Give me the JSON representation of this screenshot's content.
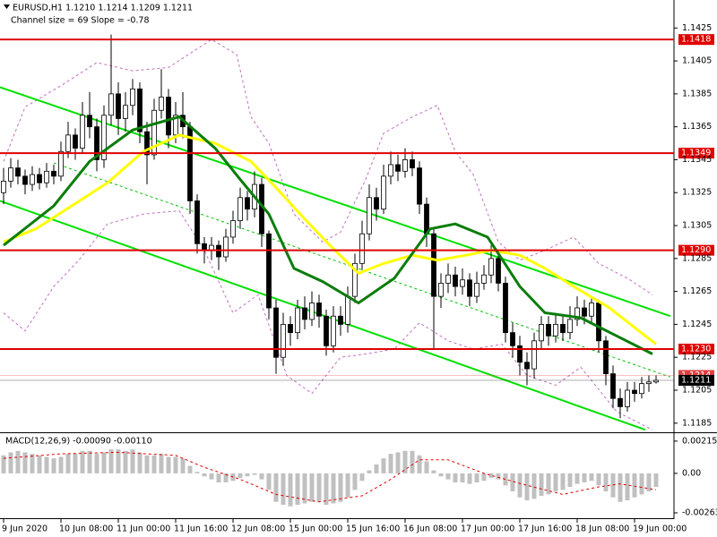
{
  "chart_data": [
    {
      "type": "candlestick",
      "title": "EURUSD,H1  1.1210 1.1214 1.1209 1.1211",
      "subtitle": "Channel size = 69 Slope = -0.78",
      "x": [
        0,
        2,
        4,
        6,
        8,
        10,
        12,
        14,
        16,
        18,
        20,
        22,
        24,
        26,
        28,
        30,
        32,
        34,
        36,
        38,
        40,
        42,
        44,
        46,
        48,
        50,
        52,
        54,
        56,
        58,
        60,
        62,
        64,
        66,
        68,
        70,
        72,
        74,
        76,
        78,
        80,
        82,
        84,
        86,
        88,
        90,
        92,
        94,
        96,
        98,
        100,
        102,
        104,
        106,
        108,
        110,
        112,
        114,
        116,
        118,
        120,
        122,
        124,
        126,
        128,
        130,
        132,
        134,
        136,
        138,
        140,
        142,
        144,
        146,
        148,
        150,
        152,
        154,
        156,
        158,
        160,
        162,
        164,
        166,
        168,
        170,
        172,
        174,
        176,
        178,
        180,
        182
      ],
      "open": [
        1.1325,
        1.1332,
        1.134,
        1.1335,
        1.133,
        1.1336,
        1.1331,
        1.1338,
        1.1335,
        1.135,
        1.136,
        1.1352,
        1.1372,
        1.1365,
        1.1345,
        1.1372,
        1.1385,
        1.137,
        1.1378,
        1.1388,
        1.1362,
        1.1348,
        1.1375,
        1.1383,
        1.136,
        1.1372,
        1.1365,
        1.132,
        1.1294,
        1.129,
        1.1293,
        1.1286,
        1.1298,
        1.1308,
        1.1322,
        1.1315,
        1.133,
        1.13,
        1.1255,
        1.1225,
        1.1245,
        1.124,
        1.1255,
        1.1248,
        1.1258,
        1.125,
        1.1232,
        1.125,
        1.1245,
        1.1262,
        1.1282,
        1.13,
        1.1322,
        1.1315,
        1.1335,
        1.1342,
        1.1338,
        1.1345,
        1.134,
        1.1318,
        1.13,
        1.1262,
        1.127,
        1.1275,
        1.1268,
        1.1272,
        1.1262,
        1.127,
        1.1275,
        1.1285,
        1.127,
        1.124,
        1.1232,
        1.1222,
        1.1218,
        1.1235,
        1.1245,
        1.1238,
        1.1245,
        1.124,
        1.1248,
        1.1255,
        1.125,
        1.1258,
        1.1235,
        1.1215,
        1.12,
        1.1195,
        1.1205,
        1.1203,
        1.1209,
        1.121
      ],
      "high": [
        1.134,
        1.1346,
        1.1345,
        1.1339,
        1.1341,
        1.134,
        1.1343,
        1.1342,
        1.1356,
        1.1368,
        1.1364,
        1.138,
        1.1386,
        1.137,
        1.1378,
        1.1421,
        1.1392,
        1.1386,
        1.1394,
        1.1392,
        1.1368,
        1.1382,
        1.14,
        1.1388,
        1.138,
        1.1386,
        1.1368,
        1.1324,
        1.1298,
        1.1298,
        1.1296,
        1.1303,
        1.1314,
        1.1328,
        1.1326,
        1.1338,
        1.1334,
        1.1302,
        1.126,
        1.1252,
        1.125,
        1.126,
        1.1262,
        1.1265,
        1.1263,
        1.1254,
        1.1256,
        1.1256,
        1.1268,
        1.1288,
        1.1308,
        1.133,
        1.1328,
        1.1342,
        1.135,
        1.1348,
        1.1352,
        1.135,
        1.1344,
        1.1322,
        1.1304,
        1.1276,
        1.1282,
        1.128,
        1.1279,
        1.1276,
        1.1277,
        1.1281,
        1.1293,
        1.129,
        1.1274,
        1.1246,
        1.1238,
        1.1228,
        1.124,
        1.125,
        1.125,
        1.1252,
        1.125,
        1.1256,
        1.1262,
        1.126,
        1.1262,
        1.126,
        1.1238,
        1.122,
        1.1206,
        1.121,
        1.121,
        1.1213,
        1.1214,
        1.1214
      ],
      "low": [
        1.1318,
        1.1328,
        1.133,
        1.1324,
        1.1326,
        1.1327,
        1.1328,
        1.133,
        1.1332,
        1.1346,
        1.1345,
        1.1349,
        1.1358,
        1.1338,
        1.134,
        1.1366,
        1.136,
        1.1362,
        1.1372,
        1.1355,
        1.133,
        1.1345,
        1.137,
        1.1352,
        1.1355,
        1.1358,
        1.1312,
        1.1288,
        1.1282,
        1.1284,
        1.1278,
        1.1283,
        1.1294,
        1.1303,
        1.1308,
        1.131,
        1.1292,
        1.1248,
        1.1215,
        1.122,
        1.1232,
        1.1236,
        1.1242,
        1.1244,
        1.1243,
        1.1226,
        1.1228,
        1.1238,
        1.124,
        1.1258,
        1.1278,
        1.1296,
        1.1308,
        1.1312,
        1.133,
        1.1332,
        1.1334,
        1.1335,
        1.1312,
        1.1292,
        1.123,
        1.1255,
        1.1264,
        1.1262,
        1.1263,
        1.1256,
        1.1258,
        1.1266,
        1.127,
        1.1265,
        1.1234,
        1.1225,
        1.1214,
        1.1208,
        1.1212,
        1.123,
        1.1232,
        1.1234,
        1.1235,
        1.1236,
        1.1244,
        1.1245,
        1.1246,
        1.1228,
        1.1208,
        1.1194,
        1.1188,
        1.1192,
        1.1198,
        1.12,
        1.1204,
        1.1209
      ],
      "close": [
        1.1332,
        1.134,
        1.1335,
        1.133,
        1.1336,
        1.1331,
        1.1338,
        1.1335,
        1.135,
        1.136,
        1.1352,
        1.1372,
        1.1365,
        1.1345,
        1.1372,
        1.1385,
        1.137,
        1.1378,
        1.1388,
        1.1362,
        1.1348,
        1.1375,
        1.1383,
        1.136,
        1.1372,
        1.1365,
        1.132,
        1.1294,
        1.129,
        1.1293,
        1.1286,
        1.1298,
        1.1308,
        1.1322,
        1.1315,
        1.133,
        1.13,
        1.1255,
        1.1225,
        1.1245,
        1.124,
        1.1255,
        1.1248,
        1.1258,
        1.125,
        1.1232,
        1.125,
        1.1245,
        1.1262,
        1.1282,
        1.13,
        1.1322,
        1.1315,
        1.1335,
        1.1342,
        1.1338,
        1.1345,
        1.134,
        1.1318,
        1.13,
        1.1262,
        1.127,
        1.1275,
        1.1268,
        1.1272,
        1.1262,
        1.127,
        1.1275,
        1.1285,
        1.127,
        1.124,
        1.1232,
        1.1222,
        1.1218,
        1.1235,
        1.1245,
        1.1238,
        1.1245,
        1.124,
        1.1248,
        1.1255,
        1.125,
        1.1258,
        1.1235,
        1.1215,
        1.12,
        1.1195,
        1.1205,
        1.1203,
        1.1209,
        1.121,
        1.1211
      ],
      "up_color": "#ffffff",
      "down_color": "#000000",
      "xlim": [
        -1,
        187
      ],
      "xticks": [
        {
          "value": 0,
          "label": "9 Jun 2020"
        },
        {
          "value": 16,
          "label": "10 Jun 08:00"
        },
        {
          "value": 32,
          "label": "11 Jun 00:00"
        },
        {
          "value": 48,
          "label": "11 Jun 16:00"
        },
        {
          "value": 64,
          "label": "12 Jun 08:00"
        },
        {
          "value": 80,
          "label": "15 Jun 00:00"
        },
        {
          "value": 96,
          "label": "15 Jun 16:00"
        },
        {
          "value": 112,
          "label": "16 Jun 08:00"
        },
        {
          "value": 128,
          "label": "17 Jun 00:00"
        },
        {
          "value": 144,
          "label": "17 Jun 16:00"
        },
        {
          "value": 160,
          "label": "18 Jun 08:00"
        },
        {
          "value": 176,
          "label": "19 Jun 00:00"
        }
      ],
      "ylim": [
        1.118,
        1.1442
      ],
      "yticks": [
        1.1425,
        1.1405,
        1.1385,
        1.1365,
        1.1345,
        1.1325,
        1.1305,
        1.1285,
        1.1265,
        1.1245,
        1.1225,
        1.1205,
        1.1185
      ],
      "lines": [
        {
          "color": "#c070c0",
          "width": 1,
          "dashed": true,
          "x": [
            0,
            6,
            16,
            26,
            36,
            46,
            58,
            65,
            69,
            74,
            81,
            89,
            94,
            101,
            106,
            114,
            121,
            126,
            131,
            138,
            144,
            151,
            159,
            166,
            174,
            181
          ],
          "values": [
            1.1344,
            1.1377,
            1.139,
            1.1404,
            1.1399,
            1.1401,
            1.1418,
            1.1409,
            1.1371,
            1.1355,
            1.1312,
            1.1295,
            1.1301,
            1.1333,
            1.1361,
            1.1371,
            1.1378,
            1.135,
            1.1336,
            1.1295,
            1.1284,
            1.129,
            1.1298,
            1.1282,
            1.1273,
            1.1263
          ]
        },
        {
          "color": "#c070c0",
          "width": 1,
          "dashed": true,
          "x": [
            0,
            6,
            14,
            21,
            29,
            39,
            49,
            56,
            64,
            71,
            79,
            86,
            94,
            101,
            109,
            116,
            124,
            131,
            139,
            146,
            154,
            161,
            171,
            181
          ],
          "values": [
            1.1252,
            1.1241,
            1.1268,
            1.1284,
            1.1306,
            1.1312,
            1.1314,
            1.129,
            1.1252,
            1.1263,
            1.1214,
            1.1203,
            1.1225,
            1.1227,
            1.123,
            1.1246,
            1.1235,
            1.123,
            1.1233,
            1.1214,
            1.1208,
            1.1219,
            1.1192,
            1.1181
          ]
        },
        {
          "color": "#00e000",
          "width": 2,
          "dashed": false,
          "x": [
            -1,
            186
          ],
          "values": [
            1.1389,
            1.125
          ]
        },
        {
          "color": "#00e000",
          "width": 2,
          "dashed": false,
          "x": [
            -1,
            179
          ],
          "values": [
            1.132,
            1.1181
          ]
        },
        {
          "color": "#00c000",
          "width": 1,
          "dashed": true,
          "x": [
            14,
            186
          ],
          "values": [
            1.1343,
            1.1213
          ]
        },
        {
          "color": "#ffff00",
          "width": 3,
          "dashed": false,
          "x": [
            0,
            9,
            19,
            29,
            39,
            49,
            59,
            69,
            76,
            84,
            91,
            99,
            106,
            114,
            121,
            129,
            136,
            144,
            151,
            159,
            169,
            179,
            182
          ],
          "values": [
            1.1295,
            1.1303,
            1.1317,
            1.1331,
            1.135,
            1.136,
            1.1355,
            1.1344,
            1.1328,
            1.1309,
            1.1293,
            1.1276,
            1.1282,
            1.1287,
            1.1284,
            1.1287,
            1.129,
            1.1287,
            1.1279,
            1.1268,
            1.1255,
            1.1238,
            1.1233
          ]
        },
        {
          "color": "#0a7d0a",
          "width": 3,
          "dashed": false,
          "x": [
            0,
            14,
            24,
            36,
            49,
            59,
            66,
            74,
            81,
            89,
            99,
            109,
            119,
            126,
            135,
            144,
            151,
            161,
            171,
            181
          ],
          "values": [
            1.1293,
            1.1317,
            1.1344,
            1.1363,
            1.1371,
            1.1352,
            1.1333,
            1.1312,
            1.1279,
            1.1271,
            1.1258,
            1.1273,
            1.1303,
            1.1306,
            1.1298,
            1.1268,
            1.1252,
            1.1249,
            1.1238,
            1.1227
          ]
        }
      ],
      "levels": [
        1.1418,
        1.1349,
        1.129,
        1.123
      ],
      "level_labels": [
        "1.1418",
        "1.1349",
        "1.1290",
        "1.1230"
      ],
      "level_color": "#e00000",
      "price_marks": [
        {
          "value": 1.1214,
          "color": "#e04040"
        },
        {
          "value": 1.1211,
          "color": "#000000"
        }
      ]
    },
    {
      "type": "macd",
      "title": "MACD(12,26,9) -0.00090 -0.00110",
      "x": [
        0,
        2,
        4,
        6,
        8,
        10,
        12,
        14,
        16,
        18,
        20,
        22,
        24,
        26,
        28,
        30,
        32,
        34,
        36,
        38,
        40,
        42,
        44,
        46,
        48,
        50,
        52,
        54,
        56,
        58,
        60,
        62,
        64,
        66,
        68,
        70,
        72,
        74,
        76,
        78,
        80,
        82,
        84,
        86,
        88,
        90,
        92,
        94,
        96,
        98,
        100,
        102,
        104,
        106,
        108,
        110,
        112,
        114,
        116,
        118,
        120,
        122,
        124,
        126,
        128,
        130,
        132,
        134,
        136,
        138,
        140,
        142,
        144,
        146,
        148,
        150,
        152,
        154,
        156,
        158,
        160,
        162,
        164,
        166,
        168,
        170,
        172,
        174,
        176,
        178,
        180,
        182
      ],
      "values": [
        0.0012,
        0.0014,
        0.0015,
        0.0014,
        0.0013,
        0.0012,
        0.0011,
        0.001,
        0.0011,
        0.0013,
        0.0013,
        0.0015,
        0.0015,
        0.0013,
        0.0014,
        0.0016,
        0.0016,
        0.0015,
        0.0016,
        0.0014,
        0.0012,
        0.0012,
        0.0013,
        0.0011,
        0.0011,
        0.001,
        0.0005,
        0.0001,
        -0.0002,
        -0.0004,
        -0.0006,
        -0.0006,
        -0.0005,
        -0.0003,
        -0.0002,
        -0.0001,
        -0.0004,
        -0.0011,
        -0.0019,
        -0.0021,
        -0.0022,
        -0.0021,
        -0.002,
        -0.0019,
        -0.0019,
        -0.0021,
        -0.002,
        -0.0019,
        -0.0016,
        -0.0011,
        -0.0005,
        0.0002,
        0.0006,
        0.001,
        0.0013,
        0.0014,
        0.0015,
        0.0015,
        0.0012,
        0.0008,
        0.0002,
        -0.0002,
        -0.0004,
        -0.0006,
        -0.0006,
        -0.0007,
        -0.0006,
        -0.0005,
        -0.0003,
        -0.0004,
        -0.0008,
        -0.0012,
        -0.0016,
        -0.0018,
        -0.0017,
        -0.0015,
        -0.0014,
        -0.0012,
        -0.0011,
        -0.0009,
        -0.0007,
        -0.0006,
        -0.0005,
        -0.0008,
        -0.0012,
        -0.0016,
        -0.0019,
        -0.0018,
        -0.0016,
        -0.0014,
        -0.0012,
        -0.0009
      ],
      "color": "#c0c0c0",
      "lines": [
        {
          "color": "#e00000",
          "width": 1,
          "dashed": true,
          "x": [
            0,
            16,
            32,
            48,
            56,
            66,
            76,
            88,
            100,
            108,
            116,
            124,
            134,
            146,
            156,
            166,
            172,
            182
          ],
          "values": [
            0.001,
            0.0013,
            0.0014,
            0.0012,
            0.0004,
            -0.0004,
            -0.0014,
            -0.0019,
            -0.0015,
            -0.0004,
            0.0009,
            0.0009,
            0.0,
            -0.0008,
            -0.0014,
            -0.0009,
            -0.0007,
            -0.0011
          ]
        }
      ],
      "xlim": [
        -1,
        187
      ],
      "ylim": [
        -0.00293,
        0.00256
      ],
      "yticks": [
        0.00215,
        {
          "value": 0,
          "label": "0.00"
        },
        -0.00263
      ]
    }
  ]
}
